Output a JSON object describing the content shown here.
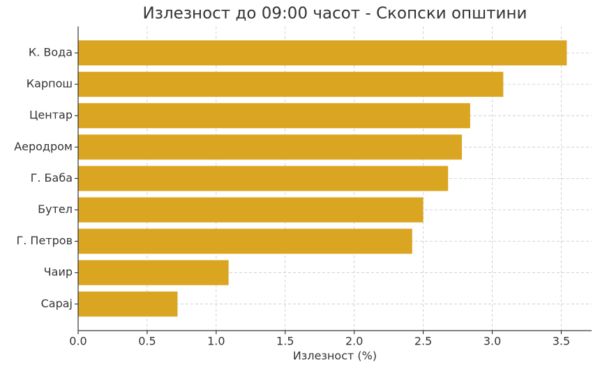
{
  "chart_data": {
    "type": "barh",
    "title": "Излезност до 09:00 часот - Скопски општини",
    "xlabel": "Излезност (%)",
    "categories": [
      "К. Вода",
      "Карпош",
      "Центар",
      "Аеродром",
      "Г. Баба",
      "Бутел",
      "Г. Петров",
      "Чаир",
      "Сарај"
    ],
    "values": [
      3.54,
      3.08,
      2.84,
      2.78,
      2.68,
      2.5,
      2.42,
      1.09,
      0.72
    ],
    "color": "#daa520",
    "xlim": [
      0,
      3.72
    ],
    "xticks": [
      {
        "value": 0,
        "label": "0.0"
      },
      {
        "value": 0.5,
        "label": "0.5"
      },
      {
        "value": 1,
        "label": "1.0"
      },
      {
        "value": 1.5,
        "label": "1.5"
      },
      {
        "value": 2,
        "label": "2.0"
      },
      {
        "value": 2.5,
        "label": "2.5"
      },
      {
        "value": 3,
        "label": "3.0"
      },
      {
        "value": 3.5,
        "label": "3.5"
      }
    ],
    "grid": true
  }
}
